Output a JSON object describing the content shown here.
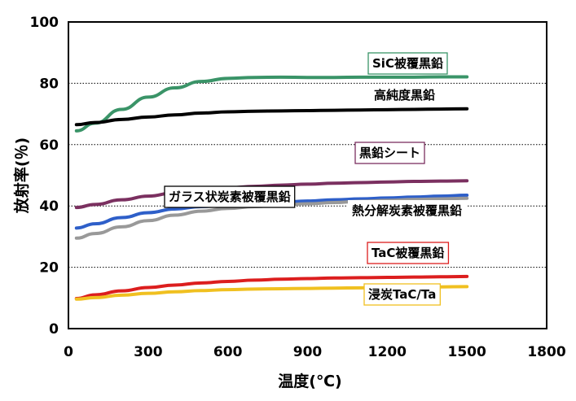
{
  "chart_data": {
    "type": "line",
    "xlabel": "温度(℃)",
    "ylabel": "放射率(％)",
    "xlim": [
      0,
      1800
    ],
    "ylim": [
      0,
      100
    ],
    "xticks": [
      0,
      300,
      600,
      900,
      1200,
      1500,
      1800
    ],
    "yticks": [
      0,
      20,
      40,
      60,
      80,
      100
    ],
    "grid": "horizontal dotted at 20, 40, 60, 80",
    "series": [
      {
        "name": "SiC被覆黒鉛",
        "color": "#3a9468",
        "label_border": "#3a9468",
        "points": [
          [
            30,
            64.5
          ],
          [
            100,
            67
          ],
          [
            200,
            71.5
          ],
          [
            300,
            75.5
          ],
          [
            400,
            78.5
          ],
          [
            500,
            80.6
          ],
          [
            600,
            81.6
          ],
          [
            700,
            81.9
          ],
          [
            800,
            82
          ],
          [
            900,
            81.9
          ],
          [
            1000,
            81.9
          ],
          [
            1100,
            82
          ],
          [
            1200,
            82
          ],
          [
            1300,
            82
          ],
          [
            1400,
            82.1
          ],
          [
            1500,
            82.1
          ]
        ]
      },
      {
        "name": "高純度黒鉛",
        "color": "#000000",
        "label_border": "",
        "points": [
          [
            30,
            66.5
          ],
          [
            100,
            67.2
          ],
          [
            200,
            68.2
          ],
          [
            300,
            69
          ],
          [
            400,
            69.7
          ],
          [
            500,
            70.3
          ],
          [
            600,
            70.7
          ],
          [
            700,
            70.9
          ],
          [
            800,
            71
          ],
          [
            900,
            71.1
          ],
          [
            1000,
            71.2
          ],
          [
            1100,
            71.3
          ],
          [
            1200,
            71.4
          ],
          [
            1300,
            71.5
          ],
          [
            1400,
            71.6
          ],
          [
            1500,
            71.7
          ]
        ]
      },
      {
        "name": "黒鉛シート",
        "color": "#7b3060",
        "label_border": "#7b3060",
        "points": [
          [
            30,
            39.5
          ],
          [
            100,
            40.5
          ],
          [
            200,
            42
          ],
          [
            300,
            43.2
          ],
          [
            400,
            44.3
          ],
          [
            500,
            45.2
          ],
          [
            600,
            45.9
          ],
          [
            700,
            46.4
          ],
          [
            800,
            46.8
          ],
          [
            900,
            47.1
          ],
          [
            1000,
            47.4
          ],
          [
            1100,
            47.6
          ],
          [
            1200,
            47.8
          ],
          [
            1300,
            48
          ],
          [
            1400,
            48.1
          ],
          [
            1500,
            48.2
          ]
        ]
      },
      {
        "name": "ガラス状炭素被覆黒鉛",
        "color": "#2e5fc9",
        "label_border": "#000000",
        "points": [
          [
            30,
            32.8
          ],
          [
            100,
            34.2
          ],
          [
            200,
            36.2
          ],
          [
            300,
            37.8
          ],
          [
            400,
            39
          ],
          [
            500,
            39.8
          ],
          [
            600,
            40.3
          ],
          [
            700,
            40.8
          ],
          [
            800,
            41.2
          ],
          [
            900,
            41.6
          ],
          [
            1000,
            42
          ],
          [
            1100,
            42.3
          ],
          [
            1200,
            42.6
          ],
          [
            1300,
            42.9
          ],
          [
            1400,
            43.2
          ],
          [
            1500,
            43.5
          ]
        ]
      },
      {
        "name": "熱分解炭素被覆黒鉛",
        "color": "#999999",
        "label_border": "",
        "points": [
          [
            30,
            29.5
          ],
          [
            100,
            31
          ],
          [
            200,
            33.2
          ],
          [
            300,
            35.2
          ],
          [
            400,
            37
          ],
          [
            500,
            38.3
          ],
          [
            600,
            39.2
          ],
          [
            700,
            39.8
          ],
          [
            800,
            40.3
          ],
          [
            900,
            40.7
          ],
          [
            1000,
            41.1
          ],
          [
            1100,
            41.5
          ],
          [
            1200,
            41.8
          ],
          [
            1300,
            42.1
          ],
          [
            1400,
            42.3
          ],
          [
            1500,
            42.5
          ]
        ]
      },
      {
        "name": "TaC被覆黒鉛",
        "color": "#dc1e1e",
        "label_border": "#dc1e1e",
        "points": [
          [
            30,
            9.8
          ],
          [
            100,
            11
          ],
          [
            200,
            12.3
          ],
          [
            300,
            13.4
          ],
          [
            400,
            14.2
          ],
          [
            500,
            14.9
          ],
          [
            600,
            15.4
          ],
          [
            700,
            15.8
          ],
          [
            800,
            16.1
          ],
          [
            900,
            16.3
          ],
          [
            1000,
            16.5
          ],
          [
            1100,
            16.6
          ],
          [
            1200,
            16.7
          ],
          [
            1300,
            16.8
          ],
          [
            1400,
            16.9
          ],
          [
            1500,
            17
          ]
        ]
      },
      {
        "name": "浸炭TaC/Ta",
        "color": "#f0c020",
        "label_border": "#f0c020",
        "points": [
          [
            30,
            9.6
          ],
          [
            100,
            10.1
          ],
          [
            200,
            10.9
          ],
          [
            300,
            11.5
          ],
          [
            400,
            12
          ],
          [
            500,
            12.4
          ],
          [
            600,
            12.7
          ],
          [
            700,
            12.9
          ],
          [
            800,
            13
          ],
          [
            900,
            13.1
          ],
          [
            1000,
            13.2
          ],
          [
            1100,
            13.3
          ],
          [
            1200,
            13.4
          ],
          [
            1300,
            13.5
          ],
          [
            1400,
            13.6
          ],
          [
            1500,
            13.7
          ]
        ]
      }
    ]
  }
}
